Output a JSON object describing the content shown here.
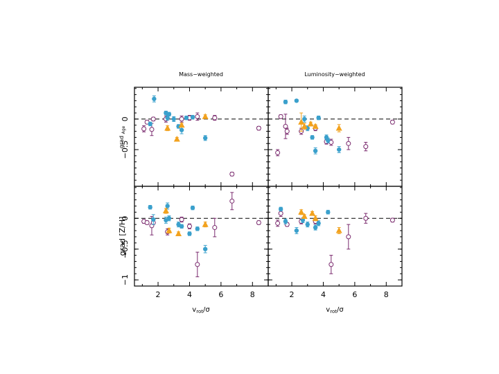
{
  "chart_data": {
    "type": "scatter",
    "x_range": [
      0.5,
      9
    ],
    "x_ticks": [
      2,
      4,
      6,
      8
    ],
    "xlabel_left": "v",
    "xlabel_sub_left": "rot",
    "xlabel_tail_left": "/σ",
    "xlabel_right": "v",
    "xlabel_sub_right": "rot",
    "xlabel_tail_right": "/σ",
    "col_titles": [
      "Mass−weighted",
      "Luminosity−weighted"
    ],
    "rows": [
      {
        "ylabel": "grad Age",
        "ylabel_html": "grad",
        "ylabel_sub": "Age",
        "y_range": [
          -1.1,
          0.52
        ],
        "y_ticks": [
          {
            "v": 0,
            "label": "0"
          },
          {
            "v": -0.5,
            "label": "−0.5"
          }
        ]
      },
      {
        "ylabel": "grad [Z/H]",
        "y_range": [
          -1.1,
          0.52
        ],
        "y_ticks": [
          {
            "v": 0,
            "label": "0"
          },
          {
            "v": -0.5,
            "label": "−0.5"
          },
          {
            "v": -1,
            "label": "−1"
          }
        ]
      }
    ],
    "colors": {
      "blue": "#3aa0cc",
      "orange": "#f2a21e",
      "purple": "#7a2a6e"
    },
    "panels": [
      {
        "name": "mass-age",
        "row": 0,
        "col": 0,
        "blue": [
          [
            1.5,
            -0.08,
            0.03
          ],
          [
            1.75,
            0.33,
            0.05
          ],
          [
            2.5,
            0.1,
            0.03
          ],
          [
            2.6,
            0.02,
            0.04
          ],
          [
            2.7,
            0.08,
            0.03
          ],
          [
            3.0,
            0.0,
            0.04
          ],
          [
            3.3,
            -0.12,
            0.03
          ],
          [
            3.5,
            -0.18,
            0.06
          ],
          [
            3.8,
            0.02,
            0.03
          ],
          [
            4.2,
            0.03,
            0.03
          ],
          [
            5.0,
            -0.31,
            0.04
          ]
        ],
        "orange": [
          [
            2.6,
            -0.15,
            0.04
          ],
          [
            3.2,
            -0.33,
            0.03
          ],
          [
            3.5,
            -0.1,
            0.03
          ],
          [
            5.0,
            0.04,
            0.03
          ]
        ],
        "purple": [
          [
            1.1,
            -0.16,
            0.05
          ],
          [
            1.3,
            -0.05,
            0.03
          ],
          [
            1.6,
            -0.17,
            0.1
          ],
          [
            1.7,
            0.0,
            0.03
          ],
          [
            2.5,
            0.0,
            0.05
          ],
          [
            3.5,
            0.0,
            0.05
          ],
          [
            4.0,
            0.02,
            0.04
          ],
          [
            4.5,
            0.04,
            0.06
          ],
          [
            5.6,
            0.02,
            0.04
          ],
          [
            6.7,
            -0.9,
            0.03
          ],
          [
            8.4,
            -0.15,
            0.03
          ]
        ]
      },
      {
        "name": "lum-age",
        "row": 0,
        "col": 1,
        "blue": [
          [
            1.6,
            0.28,
            0.03
          ],
          [
            2.3,
            0.3,
            0.02
          ],
          [
            2.8,
            0.0,
            0.05
          ],
          [
            3.0,
            -0.15,
            0.04
          ],
          [
            3.3,
            -0.3,
            0.03
          ],
          [
            3.5,
            -0.52,
            0.05
          ],
          [
            3.7,
            0.02,
            0.03
          ],
          [
            4.2,
            -0.3,
            0.04
          ],
          [
            4.3,
            -0.35,
            0.04
          ],
          [
            5.0,
            -0.5,
            0.05
          ]
        ],
        "orange": [
          [
            2.6,
            -0.05,
            0.15
          ],
          [
            2.8,
            -0.12,
            0.05
          ],
          [
            3.2,
            -0.08,
            0.03
          ],
          [
            3.5,
            -0.12,
            0.03
          ],
          [
            5.0,
            -0.15,
            0.06
          ]
        ],
        "purple": [
          [
            1.1,
            -0.55,
            0.05
          ],
          [
            1.3,
            0.04,
            0.03
          ],
          [
            1.6,
            -0.12,
            0.2
          ],
          [
            1.7,
            -0.2,
            0.05
          ],
          [
            2.6,
            -0.2,
            0.05
          ],
          [
            3.5,
            -0.15,
            0.04
          ],
          [
            4.2,
            -0.37,
            0.04
          ],
          [
            4.5,
            -0.38,
            0.05
          ],
          [
            5.6,
            -0.4,
            0.1
          ],
          [
            6.7,
            -0.45,
            0.07
          ],
          [
            8.4,
            -0.05,
            0.03
          ]
        ]
      },
      {
        "name": "mass-zh",
        "row": 1,
        "col": 0,
        "blue": [
          [
            1.5,
            0.18,
            0.03
          ],
          [
            1.7,
            -0.02,
            0.08
          ],
          [
            2.5,
            -0.03,
            0.05
          ],
          [
            2.6,
            0.2,
            0.05
          ],
          [
            2.7,
            0.0,
            0.04
          ],
          [
            3.3,
            -0.1,
            0.04
          ],
          [
            3.5,
            -0.13,
            0.03
          ],
          [
            4.0,
            -0.25,
            0.03
          ],
          [
            4.2,
            0.17,
            0.03
          ],
          [
            4.5,
            -0.17,
            0.03
          ],
          [
            5.0,
            -0.5,
            0.06
          ]
        ],
        "orange": [
          [
            2.5,
            0.12,
            0.04
          ],
          [
            2.7,
            -0.2,
            0.04
          ],
          [
            3.3,
            -0.25,
            0.03
          ],
          [
            5.0,
            -0.1,
            0.04
          ]
        ],
        "purple": [
          [
            1.1,
            -0.05,
            0.03
          ],
          [
            1.3,
            -0.07,
            0.03
          ],
          [
            1.6,
            -0.12,
            0.15
          ],
          [
            1.7,
            -0.07,
            0.03
          ],
          [
            2.6,
            -0.22,
            0.05
          ],
          [
            3.5,
            -0.02,
            0.04
          ],
          [
            4.0,
            -0.13,
            0.04
          ],
          [
            4.5,
            -0.75,
            0.2
          ],
          [
            5.6,
            -0.15,
            0.15
          ],
          [
            6.7,
            0.28,
            0.14
          ],
          [
            8.4,
            -0.07,
            0.03
          ]
        ]
      },
      {
        "name": "lum-zh",
        "row": 1,
        "col": 1,
        "blue": [
          [
            1.3,
            0.15,
            0.03
          ],
          [
            1.6,
            -0.05,
            0.04
          ],
          [
            2.3,
            -0.2,
            0.05
          ],
          [
            2.7,
            -0.03,
            0.04
          ],
          [
            3.0,
            -0.1,
            0.04
          ],
          [
            3.5,
            -0.15,
            0.04
          ],
          [
            3.7,
            -0.08,
            0.04
          ],
          [
            4.3,
            0.1,
            0.03
          ]
        ],
        "orange": [
          [
            2.6,
            0.1,
            0.04
          ],
          [
            2.8,
            0.03,
            0.03
          ],
          [
            3.3,
            0.08,
            0.03
          ],
          [
            3.5,
            0.0,
            0.04
          ],
          [
            5.0,
            -0.2,
            0.05
          ]
        ],
        "purple": [
          [
            1.1,
            -0.08,
            0.05
          ],
          [
            1.3,
            0.08,
            0.05
          ],
          [
            1.7,
            -0.1,
            0.03
          ],
          [
            2.6,
            -0.05,
            0.04
          ],
          [
            3.5,
            -0.05,
            0.04
          ],
          [
            4.5,
            -0.75,
            0.15
          ],
          [
            5.6,
            -0.3,
            0.2
          ],
          [
            6.7,
            0.0,
            0.08
          ],
          [
            8.4,
            -0.03,
            0.03
          ]
        ]
      }
    ]
  }
}
